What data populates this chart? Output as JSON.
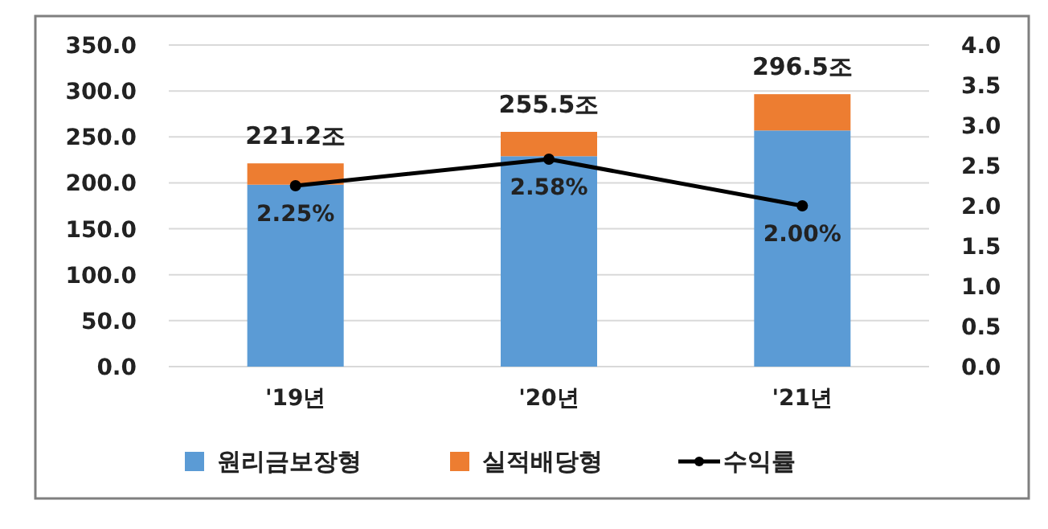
{
  "chart_data": {
    "type": "bar",
    "stacked": true,
    "categories": [
      "'19년",
      "'20년",
      "'21년"
    ],
    "series": [
      {
        "name": "원리금보장형",
        "color": "#5b9bd5",
        "values": [
          198,
          229,
          257
        ]
      },
      {
        "name": "실적배당형",
        "color": "#ed7d31",
        "values": [
          23.2,
          26.5,
          39.5
        ]
      },
      {
        "name": "수익률",
        "type": "line",
        "axis": "y2",
        "color": "#000000",
        "marker": "circle",
        "values": [
          2.25,
          2.58,
          2.0
        ],
        "value_labels": [
          "2.25%",
          "2.58%",
          "2.00%"
        ]
      }
    ],
    "totals": [
      "221.2조",
      "255.5조",
      "296.5조"
    ],
    "ylim": [
      0,
      350
    ],
    "yticks": [
      {
        "value": 0,
        "label": "0.0"
      },
      {
        "value": 50,
        "label": "50.0"
      },
      {
        "value": 100,
        "label": "100.0"
      },
      {
        "value": 150,
        "label": "150.0"
      },
      {
        "value": 200,
        "label": "200.0"
      },
      {
        "value": 250,
        "label": "250.0"
      },
      {
        "value": 300,
        "label": "300.0"
      },
      {
        "value": 350,
        "label": "350.0"
      }
    ],
    "y2lim": [
      0,
      4
    ],
    "y2ticks": [
      {
        "value": 0,
        "label": "0.0"
      },
      {
        "value": 0.5,
        "label": "0.5"
      },
      {
        "value": 1,
        "label": "1.0"
      },
      {
        "value": 1.5,
        "label": "1.5"
      },
      {
        "value": 2,
        "label": "2.0"
      },
      {
        "value": 2.5,
        "label": "2.5"
      },
      {
        "value": 3,
        "label": "3.0"
      },
      {
        "value": 3.5,
        "label": "3.5"
      },
      {
        "value": 4,
        "label": "4.0"
      }
    ],
    "grid": "y",
    "legend": "bottom"
  }
}
